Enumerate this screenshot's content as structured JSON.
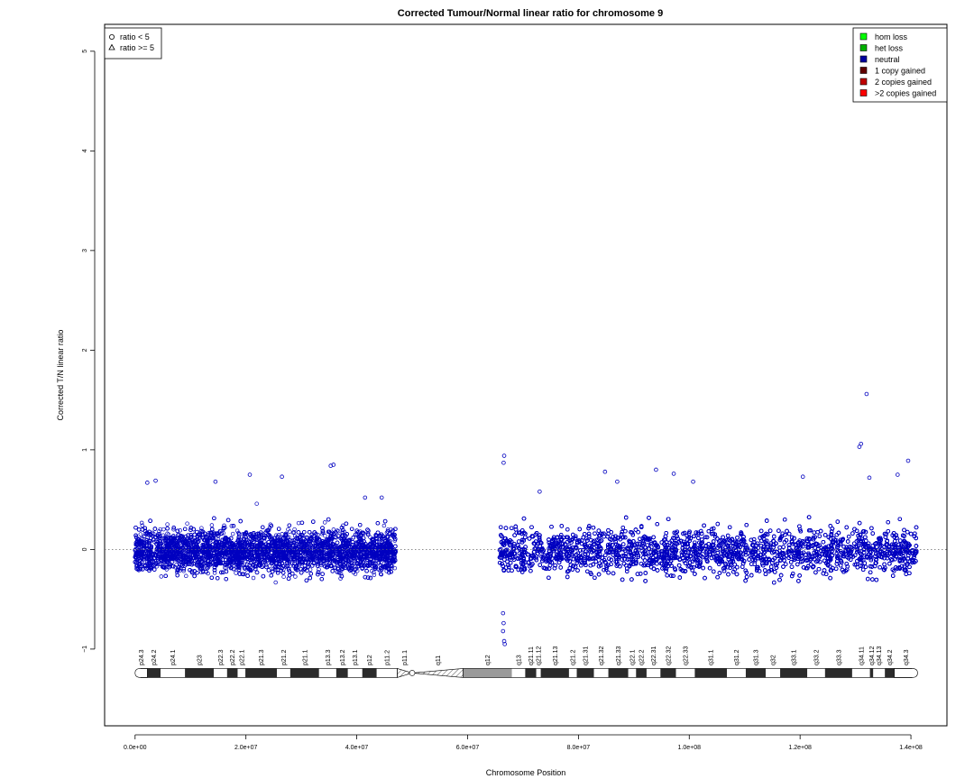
{
  "chart_data": {
    "type": "scatter",
    "title": "Corrected Tumour/Normal linear ratio for chromosome  9",
    "xlabel": "Chromosome Position",
    "ylabel": "Corrected T/N linear ratio",
    "xlim": [
      -5500000,
      146500000
    ],
    "ylim": [
      -1.77,
      5.27
    ],
    "x_ticks": [
      0,
      20000000,
      40000000,
      60000000,
      80000000,
      100000000,
      120000000,
      140000000
    ],
    "x_tick_labels": [
      "0.0e+00",
      "2.0e+07",
      "4.0e+07",
      "6.0e+07",
      "8.0e+07",
      "1.0e+08",
      "1.2e+08",
      "1.4e+08"
    ],
    "y_ticks": [
      -1,
      0,
      1,
      2,
      3,
      4,
      5
    ],
    "y_tick_labels": [
      "−1",
      "0",
      "1",
      "2",
      "3",
      "4",
      "5"
    ],
    "reference_line": 0,
    "point_color": "#0000c0",
    "shape_legend": {
      "placement": "top-left",
      "entries": [
        {
          "label": "ratio < 5",
          "symbol": "circle"
        },
        {
          "label": "ratio >= 5",
          "symbol": "triangle"
        }
      ]
    },
    "color_legend": {
      "placement": "top-right",
      "entries": [
        {
          "label": "hom loss",
          "color": "#00ff00"
        },
        {
          "label": "het loss",
          "color": "#00b000"
        },
        {
          "label": "neutral",
          "color": "#0000a0"
        },
        {
          "label": "1 copy gained",
          "color": "#600000"
        },
        {
          "label": "2 copies gained",
          "color": "#c00000"
        },
        {
          "label": ">2 copies gained",
          "color": "#ff0000"
        }
      ]
    },
    "data_segments": [
      {
        "x_start": 0,
        "x_end": 47000000,
        "center": -0.02,
        "spread": 0.28
      },
      {
        "x_start": 65800000,
        "x_end": 141000000,
        "center": -0.02,
        "spread": 0.3
      }
    ],
    "outliers": [
      {
        "x": 2200000,
        "y": 0.67
      },
      {
        "x": 3700000,
        "y": 0.69
      },
      {
        "x": 14500000,
        "y": 0.68
      },
      {
        "x": 20700000,
        "y": 0.75
      },
      {
        "x": 26500000,
        "y": 0.73
      },
      {
        "x": 35300000,
        "y": 0.84
      },
      {
        "x": 35800000,
        "y": 0.85
      },
      {
        "x": 41500000,
        "y": 0.52
      },
      {
        "x": 44500000,
        "y": 0.52
      },
      {
        "x": 66600000,
        "y": 0.94
      },
      {
        "x": 66500000,
        "y": 0.87
      },
      {
        "x": 66400000,
        "y": -0.64
      },
      {
        "x": 66500000,
        "y": -0.74
      },
      {
        "x": 66400000,
        "y": -0.82
      },
      {
        "x": 66600000,
        "y": -0.92
      },
      {
        "x": 66700000,
        "y": -0.95
      },
      {
        "x": 73000000,
        "y": 0.58
      },
      {
        "x": 84800000,
        "y": 0.78
      },
      {
        "x": 87000000,
        "y": 0.68
      },
      {
        "x": 94000000,
        "y": 0.8
      },
      {
        "x": 97200000,
        "y": 0.76
      },
      {
        "x": 100700000,
        "y": 0.68
      },
      {
        "x": 120500000,
        "y": 0.73
      },
      {
        "x": 130700000,
        "y": 1.03
      },
      {
        "x": 131000000,
        "y": 1.06
      },
      {
        "x": 132000000,
        "y": 1.56
      },
      {
        "x": 132500000,
        "y": 0.72
      },
      {
        "x": 137600000,
        "y": 0.75
      },
      {
        "x": 139500000,
        "y": 0.89
      }
    ],
    "ideogram": {
      "y": -1.24,
      "centromere": 50000000,
      "bands": [
        {
          "name": "p24.3",
          "start": 0,
          "end": 2200000,
          "stain": "gneg"
        },
        {
          "name": "p24.2",
          "start": 2200000,
          "end": 4600000,
          "stain": "gpos"
        },
        {
          "name": "p24.1",
          "start": 4600000,
          "end": 9000000,
          "stain": "gneg"
        },
        {
          "name": "p23",
          "start": 9000000,
          "end": 14200000,
          "stain": "gpos"
        },
        {
          "name": "p22.3",
          "start": 14200000,
          "end": 16600000,
          "stain": "gneg"
        },
        {
          "name": "p22.2",
          "start": 16600000,
          "end": 18500000,
          "stain": "gpos"
        },
        {
          "name": "p22.1",
          "start": 18500000,
          "end": 19900000,
          "stain": "gneg"
        },
        {
          "name": "p21.3",
          "start": 19900000,
          "end": 25600000,
          "stain": "gpos"
        },
        {
          "name": "p21.2",
          "start": 25600000,
          "end": 28000000,
          "stain": "gneg"
        },
        {
          "name": "p21.1",
          "start": 28000000,
          "end": 33200000,
          "stain": "gpos"
        },
        {
          "name": "p13.3",
          "start": 33200000,
          "end": 36300000,
          "stain": "gneg"
        },
        {
          "name": "p13.2",
          "start": 36300000,
          "end": 38400000,
          "stain": "gpos"
        },
        {
          "name": "p13.1",
          "start": 38400000,
          "end": 41000000,
          "stain": "gneg"
        },
        {
          "name": "p12",
          "start": 41000000,
          "end": 43600000,
          "stain": "gpos"
        },
        {
          "name": "p11.2",
          "start": 43600000,
          "end": 47300000,
          "stain": "gneg"
        },
        {
          "name": "p11.1",
          "start": 47300000,
          "end": 50000000,
          "stain": "stalk"
        },
        {
          "name": "q11",
          "start": 50000000,
          "end": 59200000,
          "stain": "stalk"
        },
        {
          "name": "q12",
          "start": 59200000,
          "end": 68000000,
          "stain": "gvar"
        },
        {
          "name": "q13",
          "start": 68000000,
          "end": 70400000,
          "stain": "gneg"
        },
        {
          "name": "q21.11",
          "start": 70400000,
          "end": 72400000,
          "stain": "gpos"
        },
        {
          "name": "q21.12",
          "start": 72400000,
          "end": 73200000,
          "stain": "gneg"
        },
        {
          "name": "q21.13",
          "start": 73200000,
          "end": 78300000,
          "stain": "gpos"
        },
        {
          "name": "q21.2",
          "start": 78300000,
          "end": 79700000,
          "stain": "gneg"
        },
        {
          "name": "q21.31",
          "start": 79700000,
          "end": 82800000,
          "stain": "gpos"
        },
        {
          "name": "q21.32",
          "start": 82800000,
          "end": 85400000,
          "stain": "gneg"
        },
        {
          "name": "q21.33",
          "start": 85400000,
          "end": 89000000,
          "stain": "gpos"
        },
        {
          "name": "q22.1",
          "start": 89000000,
          "end": 90400000,
          "stain": "gneg"
        },
        {
          "name": "q22.2",
          "start": 90400000,
          "end": 92300000,
          "stain": "gpos"
        },
        {
          "name": "q22.31",
          "start": 92300000,
          "end": 94800000,
          "stain": "gneg"
        },
        {
          "name": "q22.32",
          "start": 94800000,
          "end": 97600000,
          "stain": "gpos"
        },
        {
          "name": "q22.33",
          "start": 97600000,
          "end": 101000000,
          "stain": "gneg"
        },
        {
          "name": "q31.1",
          "start": 101000000,
          "end": 106800000,
          "stain": "gpos"
        },
        {
          "name": "q31.2",
          "start": 106800000,
          "end": 110200000,
          "stain": "gneg"
        },
        {
          "name": "q31.3",
          "start": 110200000,
          "end": 113800000,
          "stain": "gpos"
        },
        {
          "name": "q32",
          "start": 113800000,
          "end": 116400000,
          "stain": "gneg"
        },
        {
          "name": "q33.1",
          "start": 116400000,
          "end": 121300000,
          "stain": "gpos"
        },
        {
          "name": "q33.2",
          "start": 121300000,
          "end": 124500000,
          "stain": "gneg"
        },
        {
          "name": "q33.3",
          "start": 124500000,
          "end": 129400000,
          "stain": "gpos"
        },
        {
          "name": "q34.11",
          "start": 129400000,
          "end": 132600000,
          "stain": "gneg"
        },
        {
          "name": "q34.12",
          "start": 132600000,
          "end": 133200000,
          "stain": "gpos"
        },
        {
          "name": "q34.13",
          "start": 133200000,
          "end": 135300000,
          "stain": "gneg"
        },
        {
          "name": "q34.2",
          "start": 135300000,
          "end": 137000000,
          "stain": "gpos"
        },
        {
          "name": "q34.3",
          "start": 137000000,
          "end": 141200000,
          "stain": "gneg"
        }
      ]
    }
  }
}
